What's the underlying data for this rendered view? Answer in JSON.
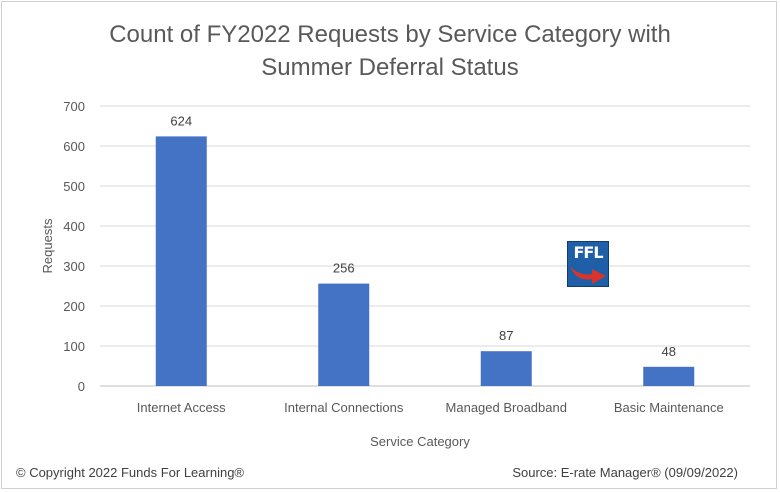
{
  "chart_data": {
    "type": "bar",
    "title_lines": [
      "Count of FY2022 Requests by Service Category with",
      "Summer Deferral Status"
    ],
    "categories": [
      "Internet Access",
      "Internal Connections",
      "Managed Broadband",
      "Basic Maintenance"
    ],
    "values": [
      624,
      256,
      87,
      48
    ],
    "data_labels": [
      "624",
      "256",
      "87",
      "48"
    ],
    "xlabel": "Service Category",
    "ylabel": "Requests",
    "ylim": [
      0,
      700
    ],
    "yticks": [
      "0",
      "100",
      "200",
      "300",
      "400",
      "500",
      "600",
      "700"
    ],
    "grid": true,
    "bar_color": "#4472c4"
  },
  "footer": {
    "copyright": "© Copyright 2022 Funds For Learning®",
    "source": "Source: E-rate Manager® (09/09/2022)"
  },
  "logo": {
    "text": "FFL",
    "icon": "ffl-logo-arrow",
    "color": "#1f5fa8",
    "arrow_color": "#d9342b"
  }
}
